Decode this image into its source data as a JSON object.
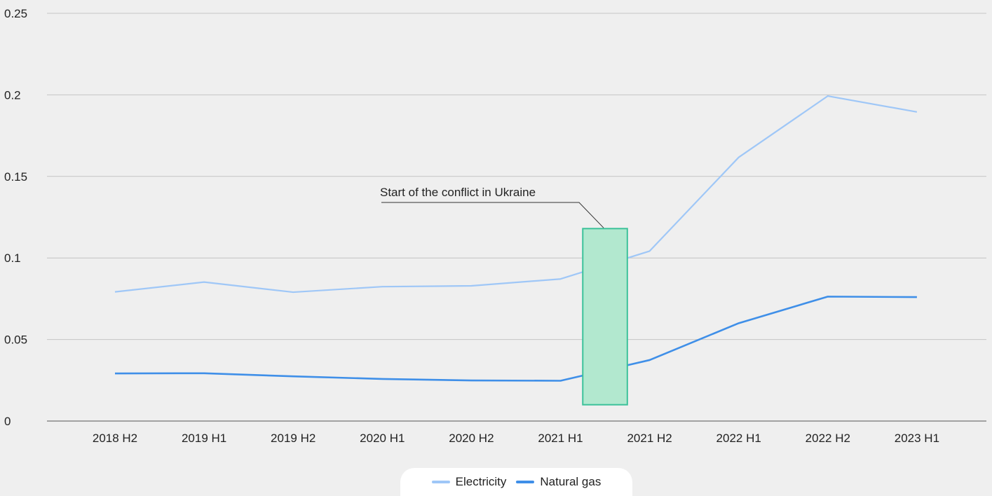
{
  "chart_data": {
    "type": "line",
    "categories": [
      "2018 H2",
      "2019 H1",
      "2019 H2",
      "2020 H1",
      "2020 H2",
      "2021 H1",
      "2021 H2",
      "2022 H1",
      "2022 H2",
      "2023 H1"
    ],
    "series": [
      {
        "name": "Electricity",
        "color": "#9fc7f7",
        "values": [
          0.0792,
          0.0852,
          0.079,
          0.0824,
          0.0829,
          0.0871,
          0.1042,
          0.1617,
          0.1993,
          0.1895
        ]
      },
      {
        "name": "Natural gas",
        "color": "#3f8fe8",
        "values": [
          0.0292,
          0.0293,
          0.0274,
          0.0258,
          0.0249,
          0.0247,
          0.0374,
          0.06,
          0.0763,
          0.076
        ]
      }
    ],
    "y_ticks": [
      "0",
      "0.05",
      "0.1",
      "0.15",
      "0.2",
      "0.25"
    ],
    "ylim": [
      0,
      0.25
    ],
    "grid": true,
    "annotation": {
      "text": "Start of the conflict in Ukraine",
      "x_start": 5.25,
      "x_end": 5.75,
      "y_start": 0.01,
      "y_end": 0.118,
      "fill_color": "#b2e8cf",
      "stroke_color": "#3cc29a"
    },
    "legend_position": "bottom-center"
  }
}
